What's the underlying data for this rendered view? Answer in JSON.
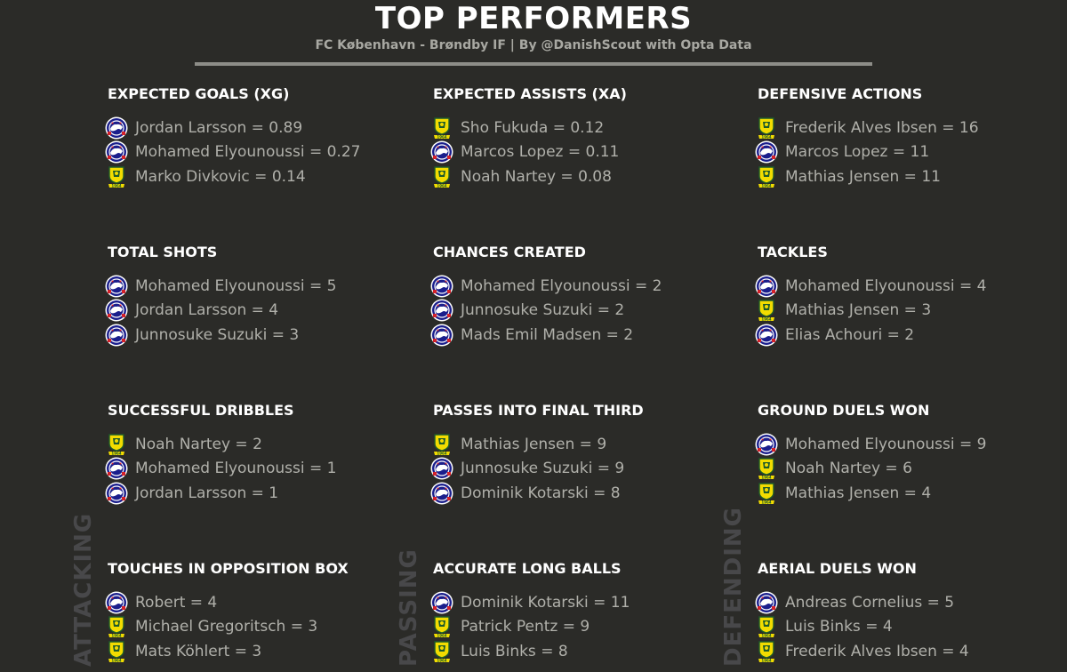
{
  "header": {
    "title": "TOP PERFORMERS",
    "subtitle": "FC København - Brøndby IF | By @DanishScout with Opta Data"
  },
  "colors": {
    "background": "#2b2b28",
    "fck_primary": "#1a1e8c",
    "fck_accent": "#d4212a",
    "brondby_primary": "#f2dc00",
    "brondby_secondary": "#1d5a2a"
  },
  "categories": [
    "ATTACKING",
    "PASSING",
    "DEFENDING"
  ],
  "stats": [
    {
      "title": "EXPECTED GOALS (XG)",
      "players": [
        {
          "team": "fck",
          "text": "Jordan Larsson = 0.89"
        },
        {
          "team": "fck",
          "text": "Mohamed Elyounoussi = 0.27"
        },
        {
          "team": "brondby",
          "text": "Marko Divkovic = 0.14"
        }
      ]
    },
    {
      "title": "EXPECTED ASSISTS (XA)",
      "players": [
        {
          "team": "brondby",
          "text": "Sho Fukuda = 0.12"
        },
        {
          "team": "fck",
          "text": "Marcos Lopez = 0.11"
        },
        {
          "team": "brondby",
          "text": "Noah Nartey = 0.08"
        }
      ]
    },
    {
      "title": "DEFENSIVE ACTIONS",
      "players": [
        {
          "team": "brondby",
          "text": "Frederik Alves Ibsen = 16"
        },
        {
          "team": "fck",
          "text": "Marcos Lopez = 11"
        },
        {
          "team": "brondby",
          "text": "Mathias Jensen = 11"
        }
      ]
    },
    {
      "title": "TOTAL SHOTS",
      "players": [
        {
          "team": "fck",
          "text": "Mohamed Elyounoussi = 5"
        },
        {
          "team": "fck",
          "text": "Jordan Larsson = 4"
        },
        {
          "team": "fck",
          "text": "Junnosuke Suzuki = 3"
        }
      ]
    },
    {
      "title": "CHANCES CREATED",
      "players": [
        {
          "team": "fck",
          "text": "Mohamed Elyounoussi = 2"
        },
        {
          "team": "fck",
          "text": "Junnosuke Suzuki = 2"
        },
        {
          "team": "fck",
          "text": "Mads Emil Madsen = 2"
        }
      ]
    },
    {
      "title": "TACKLES",
      "players": [
        {
          "team": "fck",
          "text": "Mohamed Elyounoussi = 4"
        },
        {
          "team": "brondby",
          "text": "Mathias Jensen = 3"
        },
        {
          "team": "fck",
          "text": "Elias Achouri = 2"
        }
      ]
    },
    {
      "title": "SUCCESSFUL DRIBBLES",
      "players": [
        {
          "team": "brondby",
          "text": "Noah Nartey = 2"
        },
        {
          "team": "fck",
          "text": "Mohamed Elyounoussi = 1"
        },
        {
          "team": "fck",
          "text": "Jordan Larsson = 1"
        }
      ]
    },
    {
      "title": "PASSES INTO FINAL THIRD",
      "players": [
        {
          "team": "brondby",
          "text": "Mathias Jensen = 9"
        },
        {
          "team": "fck",
          "text": "Junnosuke Suzuki = 9"
        },
        {
          "team": "fck",
          "text": "Dominik Kotarski = 8"
        }
      ]
    },
    {
      "title": "GROUND DUELS WON",
      "players": [
        {
          "team": "fck",
          "text": "Mohamed Elyounoussi = 9"
        },
        {
          "team": "brondby",
          "text": "Noah Nartey = 6"
        },
        {
          "team": "brondby",
          "text": "Mathias Jensen = 4"
        }
      ]
    },
    {
      "title": "TOUCHES IN OPPOSITION BOX",
      "players": [
        {
          "team": "fck",
          "text": "Robert = 4"
        },
        {
          "team": "brondby",
          "text": "Michael Gregoritsch = 3"
        },
        {
          "team": "brondby",
          "text": "Mats Köhlert = 3"
        }
      ]
    },
    {
      "title": "ACCURATE LONG BALLS",
      "players": [
        {
          "team": "fck",
          "text": "Dominik Kotarski = 11"
        },
        {
          "team": "brondby",
          "text": "Patrick Pentz = 9"
        },
        {
          "team": "brondby",
          "text": "Luis Binks = 8"
        }
      ]
    },
    {
      "title": "AERIAL DUELS WON",
      "players": [
        {
          "team": "fck",
          "text": "Andreas Cornelius = 5"
        },
        {
          "team": "brondby",
          "text": "Luis Binks = 4"
        },
        {
          "team": "brondby",
          "text": "Frederik Alves Ibsen = 4"
        }
      ]
    }
  ]
}
